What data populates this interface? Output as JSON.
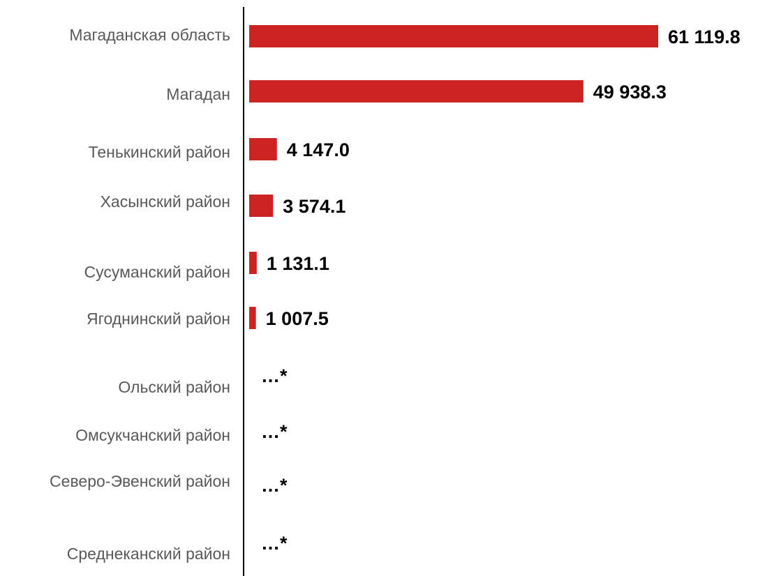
{
  "chart_data": {
    "type": "bar",
    "orientation": "horizontal",
    "categories": [
      "Магаданская область",
      "Магадан",
      "Тенькинский район",
      "Хасынский район",
      "Сусуманский район",
      "Ягоднинский район",
      "Ольский район",
      "Омсукчанский район",
      "Северо-Эвенский район",
      "Среднеканский район"
    ],
    "values": [
      61119.8,
      49938.3,
      4147.0,
      3574.1,
      1131.1,
      1007.5,
      null,
      null,
      null,
      null
    ],
    "value_labels": [
      "61 119.8",
      "49 938.3",
      "4 147.0",
      "3 574.1",
      "1 131.1",
      "1 007.5",
      "…*",
      "…*",
      "…*",
      "…*"
    ],
    "title": "",
    "xlabel": "",
    "ylabel": "",
    "xlim": [
      0,
      61119.8
    ],
    "grid": false,
    "legend": "none",
    "bar_color": "#cc2222"
  }
}
